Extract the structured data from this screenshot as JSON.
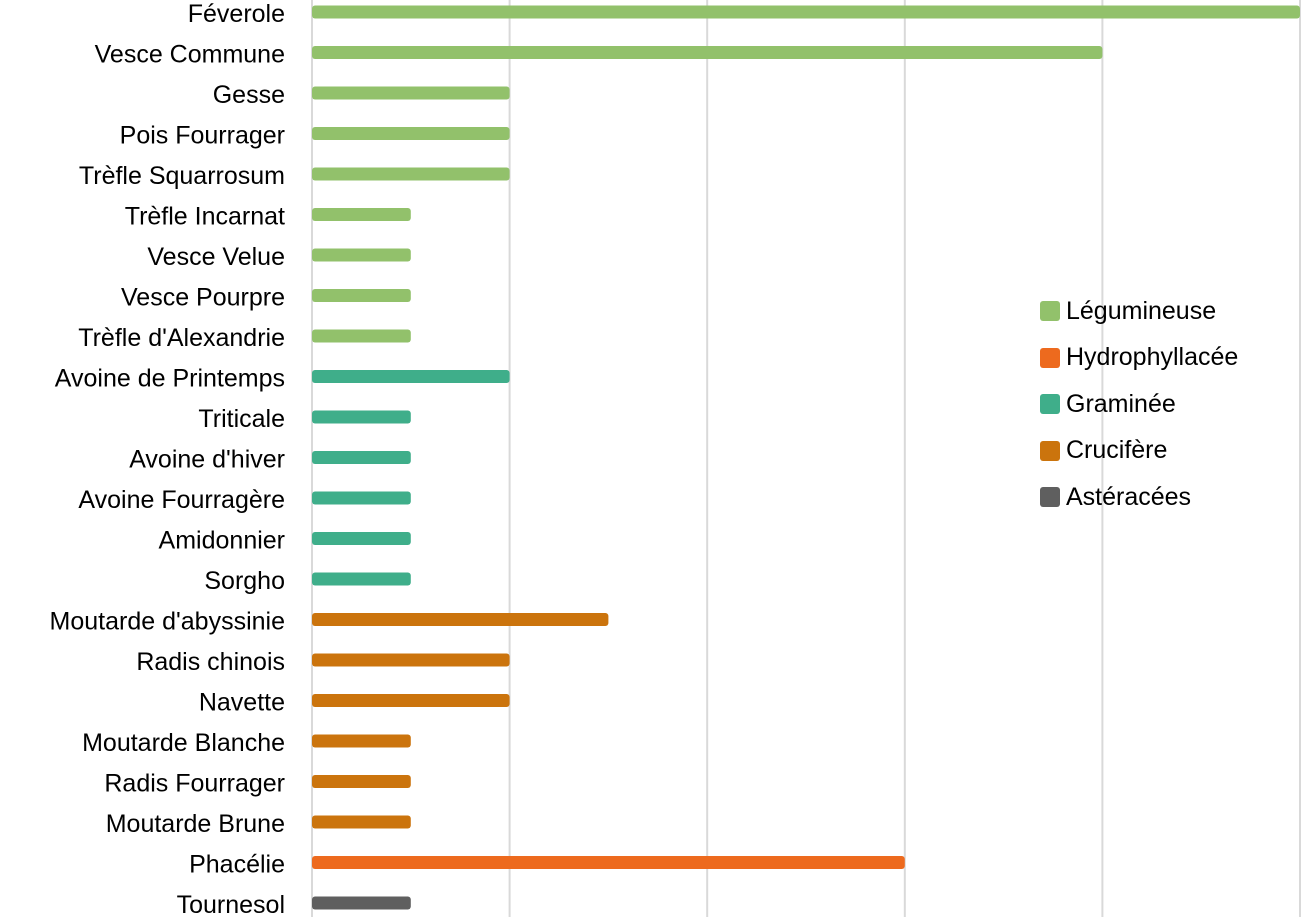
{
  "chart_data": {
    "type": "bar",
    "orientation": "horizontal",
    "categories": [
      "Féverole",
      "Vesce Commune",
      "Gesse",
      "Pois Fourrager",
      "Trèfle Squarrosum",
      "Trèfle Incarnat",
      "Vesce Velue",
      "Vesce Pourpre",
      "Trèfle d'Alexandrie",
      "Avoine de Printemps",
      "Triticale",
      "Avoine d'hiver",
      "Avoine Fourragère",
      "Amidonnier",
      "Sorgho",
      "Moutarde d'abyssinie",
      "Radis chinois",
      "Navette",
      "Moutarde Blanche",
      "Radis Fourrager",
      "Moutarde Brune",
      "Phacélie",
      "Tournesol"
    ],
    "values": [
      10,
      8,
      2,
      2,
      2,
      1,
      1,
      1,
      1,
      2,
      1,
      1,
      1,
      1,
      1,
      3,
      2,
      2,
      1,
      1,
      1,
      6,
      1
    ],
    "groups": [
      "Légumineuse",
      "Légumineuse",
      "Légumineuse",
      "Légumineuse",
      "Légumineuse",
      "Légumineuse",
      "Légumineuse",
      "Légumineuse",
      "Légumineuse",
      "Graminée",
      "Graminée",
      "Graminée",
      "Graminée",
      "Graminée",
      "Graminée",
      "Crucifère",
      "Crucifère",
      "Crucifère",
      "Crucifère",
      "Crucifère",
      "Crucifère",
      "Hydrophyllacée",
      "Astéracées"
    ],
    "legend": [
      {
        "name": "Légumineuse",
        "color": "#92c16b"
      },
      {
        "name": "Hydrophyllacée",
        "color": "#ed6a1e"
      },
      {
        "name": "Graminée",
        "color": "#3fae8a"
      },
      {
        "name": "Crucifère",
        "color": "#cb740d"
      },
      {
        "name": "Astéracées",
        "color": "#5f5f5f"
      }
    ],
    "xlim": [
      0,
      10
    ],
    "grid": true,
    "legend_position": "right"
  }
}
